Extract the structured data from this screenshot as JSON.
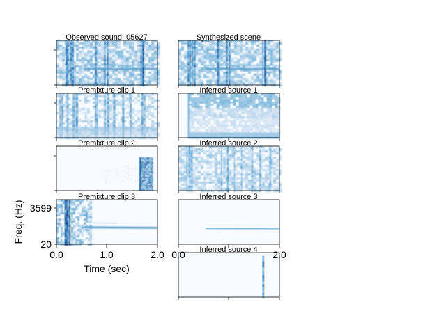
{
  "chart_data": {
    "type": "heatmap",
    "colormap": "Blues",
    "left_column": [
      {
        "title": "Observed sound: 05627",
        "pattern": "observed"
      },
      {
        "title": "Premixture clip 1",
        "pattern": "clip1"
      },
      {
        "title": "Premixture clip 2",
        "pattern": "clip2"
      },
      {
        "title": "Premixture clip 3",
        "pattern": "clip3"
      }
    ],
    "right_column": [
      {
        "title": "Synthesized scene",
        "pattern": "observed"
      },
      {
        "title": "Inferred source 1",
        "pattern": "source1"
      },
      {
        "title": "Inferred source 2",
        "pattern": "source2"
      },
      {
        "title": "Inferred source 3",
        "pattern": "source3"
      },
      {
        "title": "Inferred source 4",
        "pattern": "source4"
      }
    ],
    "xlabel": "Time (sec)",
    "ylabel": "Freq. (Hz)",
    "xlim": [
      0.0,
      2.0
    ],
    "x_ticks": [
      "0.0",
      "1.0",
      "2.0"
    ],
    "y_ticks": [
      "20",
      "3599"
    ],
    "overlapping_x_ticks_right": [
      "0.0",
      "2.0"
    ]
  }
}
